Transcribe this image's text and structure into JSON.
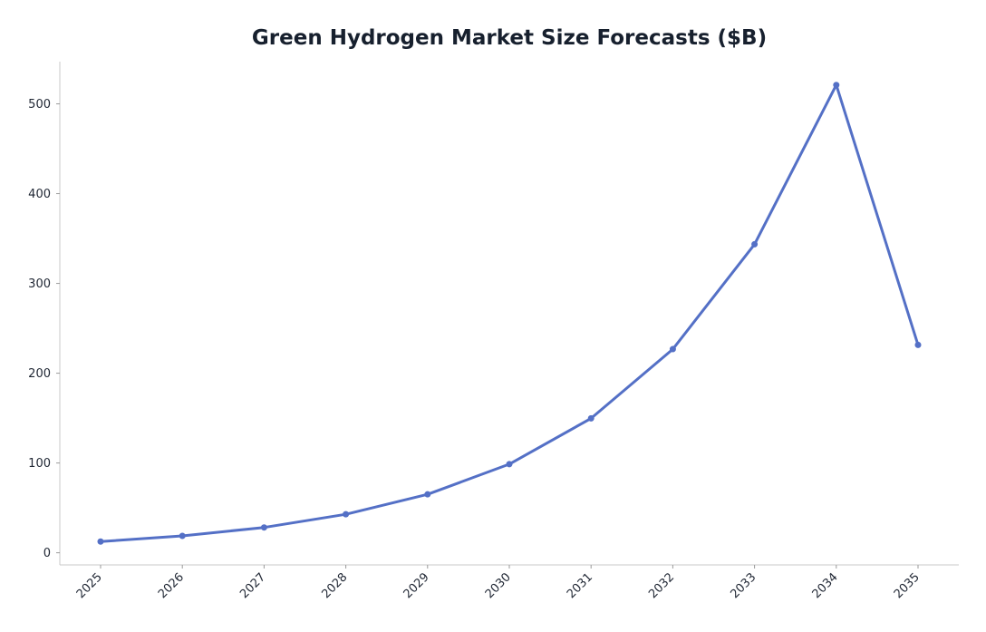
{
  "chart_data": {
    "type": "line",
    "title": "Green Hydrogen Market Size Forecasts ($B)",
    "xlabel": "",
    "ylabel": "",
    "categories": [
      "2025",
      "2026",
      "2027",
      "2028",
      "2029",
      "2030",
      "2031",
      "2032",
      "2033",
      "2034",
      "2035"
    ],
    "series": [
      {
        "values": [
          12.5,
          18.8,
          28.2,
          42.9,
          65.1,
          98.7,
          149.7,
          226.8,
          343.6,
          521.0,
          231.5
        ],
        "color": "#5470c6"
      }
    ],
    "ylim": [
      -13.5,
      547
    ],
    "yticks": [
      0,
      100,
      200,
      300,
      400,
      500
    ],
    "grid": false,
    "legend": "none"
  }
}
